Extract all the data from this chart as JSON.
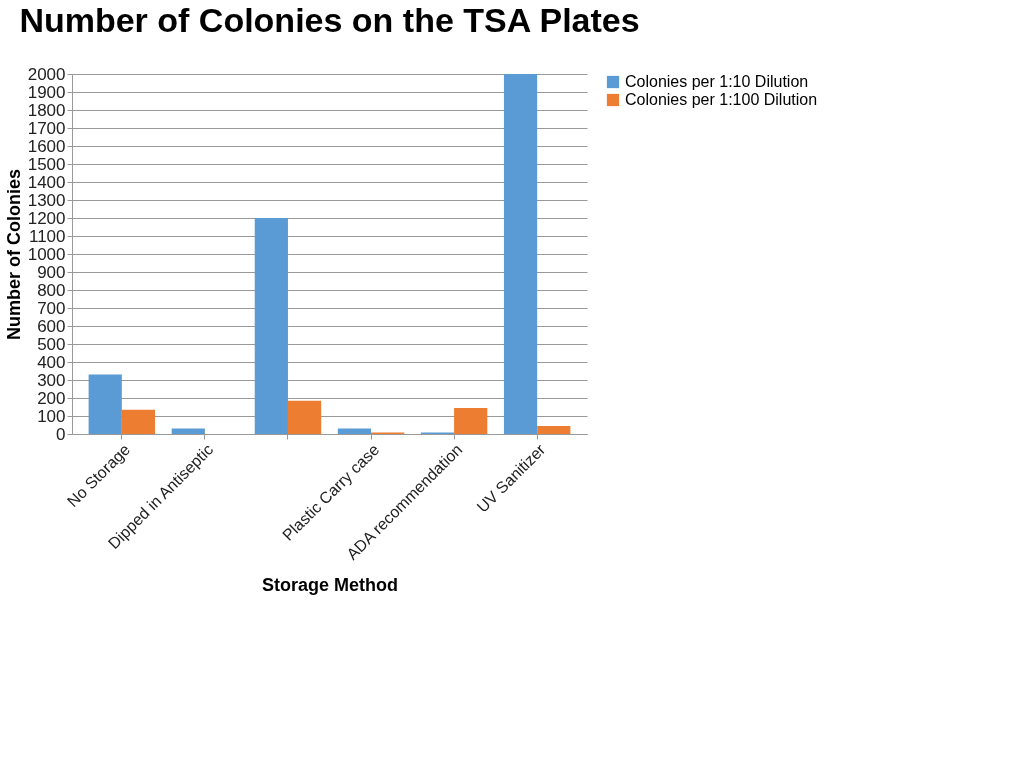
{
  "chart_data": {
    "type": "bar",
    "title": "Number of Colonies on the TSA Plates",
    "xlabel": "Storage Method",
    "ylabel": "Number of Colonies",
    "categories": [
      "No Storage",
      "Dipped in Antiseptic",
      null,
      "Plastic Carry case",
      "ADA recommendation",
      "UV Sanitizer"
    ],
    "series": [
      {
        "name": "Colonies per 1:10 Dilution",
        "color": "#5b9bd5",
        "values": [
          330,
          30,
          1200,
          30,
          8,
          2000
        ]
      },
      {
        "name": "Colonies per 1:100 Dilution",
        "color": "#ed7d31",
        "values": [
          135,
          0,
          185,
          8,
          145,
          45
        ]
      }
    ],
    "ylim": [
      0,
      2000
    ],
    "yticks": [
      0,
      100,
      200,
      300,
      400,
      500,
      600,
      700,
      800,
      900,
      1000,
      1100,
      1200,
      1300,
      1400,
      1500,
      1600,
      1700,
      1800,
      1900,
      2000
    ],
    "grid": "y",
    "legend": "right"
  }
}
